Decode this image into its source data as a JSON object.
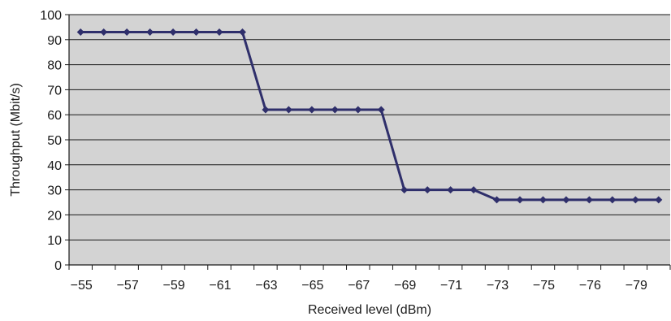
{
  "chart_data": {
    "type": "line",
    "title": "",
    "xlabel": "Received level (dBm)",
    "ylabel": "Throughput (Mbit/s)",
    "ylim": [
      0,
      100
    ],
    "yticks": [
      "0",
      "10",
      "20",
      "30",
      "40",
      "50",
      "60",
      "70",
      "80",
      "90",
      "100"
    ],
    "x_tick_labels": [
      "−55",
      "−57",
      "−59",
      "−61",
      "−63",
      "−65",
      "−67",
      "−69",
      "−71",
      "−73",
      "−75",
      "−76",
      "−79"
    ],
    "grid": "horizontal",
    "series": [
      {
        "values": [
          93,
          93,
          93,
          93,
          93,
          93,
          93,
          93,
          62,
          62,
          62,
          62,
          62,
          62,
          30,
          30,
          30,
          30,
          26,
          26,
          26,
          26,
          26,
          26,
          26,
          26
        ]
      }
    ],
    "colors": {
      "plot_background": "#d3d3d3",
      "line": "#2f2f6b",
      "grid": "#1a1a1a"
    }
  }
}
